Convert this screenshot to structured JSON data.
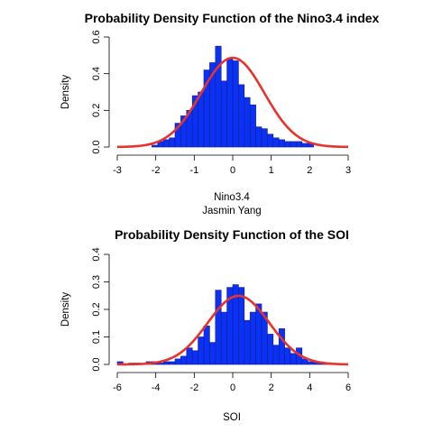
{
  "chart_data": [
    {
      "type": "bar",
      "title": "Probability Density Function of the Nino3.4 index",
      "xlabel": "Nino3.4",
      "sublabel": "Jasmin Yang",
      "ylabel": "Density",
      "xlim": [
        -3,
        3
      ],
      "ylim": [
        0,
        0.6
      ],
      "x_ticks": [
        "-3",
        "-2",
        "-1",
        "0",
        "1",
        "2",
        "3"
      ],
      "y_ticks": [
        "0.0",
        "0.2",
        "0.4",
        "0.6"
      ],
      "bin_width": 0.15,
      "bin_start": -2.1,
      "values": [
        0.01,
        0.03,
        0.04,
        0.05,
        0.13,
        0.17,
        0.2,
        0.28,
        0.3,
        0.42,
        0.46,
        0.55,
        0.36,
        0.48,
        0.47,
        0.34,
        0.27,
        0.23,
        0.11,
        0.1,
        0.07,
        0.05,
        0.04,
        0.03,
        0.03,
        0.03,
        0.02,
        0.02
      ],
      "curve": {
        "mean": 0.0,
        "sd": 0.82,
        "color": "#e8322c"
      },
      "bar_color": "#0a32f5",
      "bar_edge": "#1a1a8c",
      "grid": false
    },
    {
      "type": "bar",
      "title": "Probability Density Function of the SOI",
      "xlabel": "SOI",
      "ylabel": "Density",
      "xlim": [
        -6,
        6
      ],
      "ylim": [
        0,
        0.4
      ],
      "x_ticks": [
        "-6",
        "-4",
        "-2",
        "0",
        "2",
        "4",
        "6"
      ],
      "y_ticks": [
        "0.0",
        "0.1",
        "0.2",
        "0.3",
        "0.4"
      ],
      "bin_width": 0.3,
      "bin_start": -6.0,
      "values": [
        0.01,
        0.0,
        0.005,
        0.005,
        0.0,
        0.01,
        0.01,
        0.005,
        0.01,
        0.01,
        0.02,
        0.03,
        0.06,
        0.05,
        0.1,
        0.14,
        0.08,
        0.27,
        0.19,
        0.28,
        0.29,
        0.28,
        0.16,
        0.19,
        0.22,
        0.19,
        0.11,
        0.07,
        0.13,
        0.06,
        0.04,
        0.06,
        0.02,
        0.01,
        0.01,
        0.005,
        0.005
      ],
      "curve": {
        "mean": 0.3,
        "sd": 1.6,
        "color": "#e8322c"
      },
      "bar_color": "#0a32f5",
      "bar_edge": "#1a1a8c",
      "grid": false
    }
  ]
}
